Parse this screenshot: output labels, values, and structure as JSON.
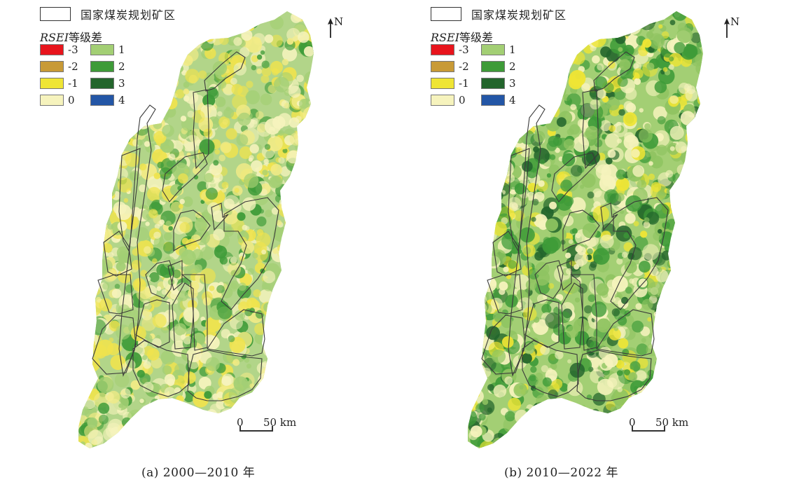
{
  "legend": {
    "boundary_label": "国家煤炭规划矿区",
    "rsei_title_italic": "RSEI",
    "rsei_title_rest": "等级差",
    "classes": [
      {
        "value": "-3",
        "color": "#e8141c"
      },
      {
        "value": "1",
        "color": "#a3cf74"
      },
      {
        "value": "-2",
        "color": "#c89a36"
      },
      {
        "value": "2",
        "color": "#3e9b38"
      },
      {
        "value": "-1",
        "color": "#efe534"
      },
      {
        "value": "3",
        "color": "#23652c"
      },
      {
        "value": "0",
        "color": "#f6f3bd"
      },
      {
        "value": "4",
        "color": "#2356a6"
      }
    ]
  },
  "north_label": "N",
  "scale": {
    "zero": "0",
    "distance": "50 km"
  },
  "panels": [
    {
      "id": "a",
      "caption": "(a) 2000—2010 年",
      "palette": [
        "#b2d589",
        "#f6f3bd",
        "#efe34e",
        "#a3cf74",
        "#3e9b38",
        "#f2eb86"
      ]
    },
    {
      "id": "b",
      "caption": "(b) 2010—2022 年",
      "palette": [
        "#a3cf74",
        "#f6f3bd",
        "#8fc461",
        "#3e9b38",
        "#efe534",
        "#23652c"
      ]
    }
  ]
}
